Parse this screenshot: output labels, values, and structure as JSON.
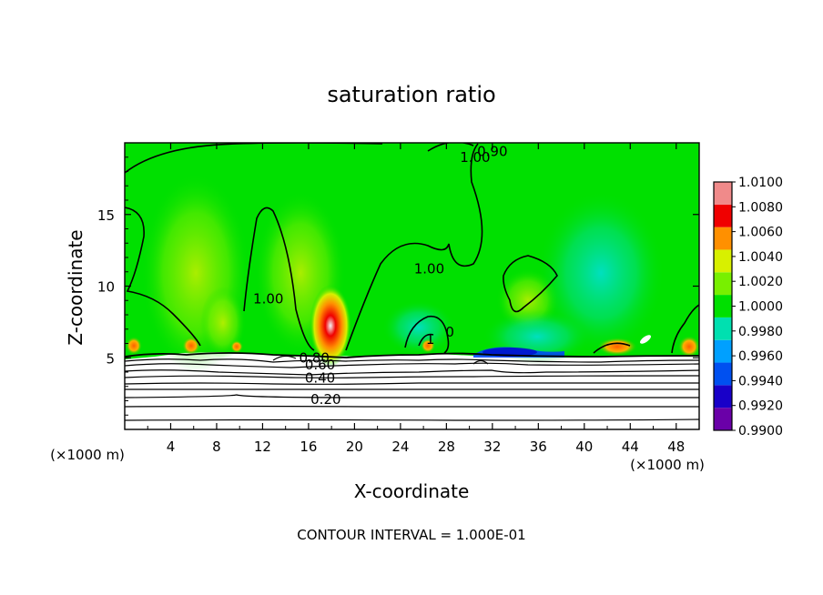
{
  "chart_data": {
    "type": "heatmap",
    "title": "saturation ratio",
    "xlabel": "X-coordinate",
    "ylabel": "Z-coordinate",
    "x_unit": "(×1000 m)",
    "xlim": [
      0,
      50
    ],
    "ylim": [
      0,
      20
    ],
    "x_ticks": [
      4,
      8,
      12,
      16,
      20,
      24,
      28,
      32,
      36,
      40,
      44,
      48
    ],
    "y_ticks": [
      5,
      10,
      15
    ],
    "colorbar": {
      "levels": [
        0.99,
        0.992,
        0.994,
        0.996,
        0.998,
        1.0,
        1.002,
        1.004,
        1.006,
        1.008,
        1.01
      ],
      "labels": [
        "0.9900",
        "0.9920",
        "0.9940",
        "0.9960",
        "0.9980",
        "1.0000",
        "1.0020",
        "1.0040",
        "1.0060",
        "1.0080",
        "1.0100"
      ],
      "colors": [
        "#6a00a8",
        "#1800c8",
        "#0050f0",
        "#00a0ff",
        "#00e0b0",
        "#00e000",
        "#78f000",
        "#d8f000",
        "#ff9000",
        "#f00000",
        "#f08a8a"
      ]
    },
    "contour_labels": [
      {
        "text": "1.00",
        "x": 30.5,
        "z": 19.0
      },
      {
        "text": "0.90",
        "x": 32.0,
        "z": 19.4
      },
      {
        "text": "1.00",
        "x": 26.5,
        "z": 11.2
      },
      {
        "text": "1.00",
        "x": 12.5,
        "z": 9.1
      },
      {
        "text": "1",
        "x": 26.6,
        "z": 6.3
      },
      {
        "text": "0",
        "x": 28.3,
        "z": 6.8
      },
      {
        "text": "0.80",
        "x": 16.5,
        "z": 5.0
      },
      {
        "text": "0.60",
        "x": 17.0,
        "z": 4.5
      },
      {
        "text": "0.40",
        "x": 17.0,
        "z": 3.6
      },
      {
        "text": "0.20",
        "x": 17.5,
        "z": 2.1
      }
    ],
    "contour_interval_text": "CONTOUR INTERVAL = 1.000E-01"
  }
}
